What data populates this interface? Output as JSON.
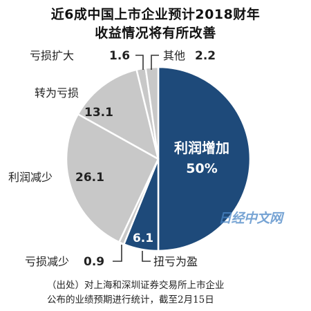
{
  "chart_data": {
    "type": "pie",
    "title_lines": [
      "近6成中国上市企业预计2018财年",
      "收益情况将有所改善"
    ],
    "unit": "%",
    "colors": {
      "dark": "#1e4a7a",
      "light": "#c8c8c8",
      "border": "#ffffff"
    },
    "slices": [
      {
        "label": "利润增加",
        "value": 50,
        "display": "50%",
        "color": "dark"
      },
      {
        "label": "扭亏为盈",
        "value": 6.1,
        "display": "6.1",
        "color": "dark"
      },
      {
        "label": "亏损减少",
        "value": 0.9,
        "display": "0.9",
        "color": "light"
      },
      {
        "label": "利润减少",
        "value": 26.1,
        "display": "26.1",
        "color": "light"
      },
      {
        "label": "转为亏损",
        "value": 13.1,
        "display": "13.1",
        "color": "light"
      },
      {
        "label": "亏损扩大",
        "value": 1.6,
        "display": "1.6",
        "color": "light"
      },
      {
        "label": "其他",
        "value": 2.2,
        "display": "2.2",
        "color": "light"
      }
    ]
  },
  "watermark": "日经中文网",
  "source_lines": [
    "（出处）对上海和深圳证券交易所上市企业",
    "公布的业绩预期进行统计，截至2月15日"
  ]
}
